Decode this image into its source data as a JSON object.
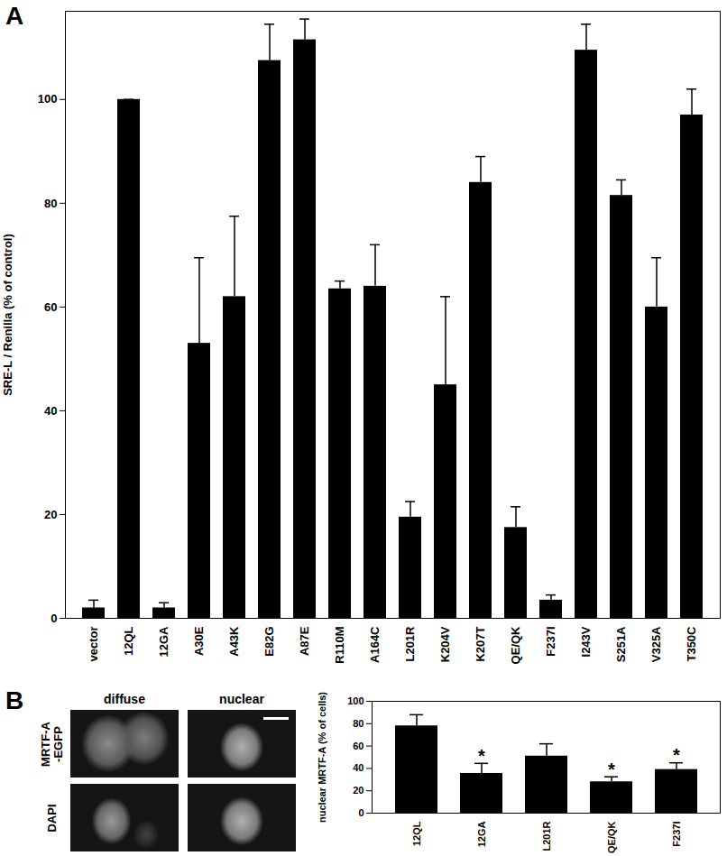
{
  "chart_data": [
    {
      "type": "bar",
      "title": "A",
      "y_label": "SRE-L / Renilla (% of control)",
      "categories": [
        "vector",
        "12QL",
        "12GA",
        "A30E",
        "A43K",
        "E82G",
        "A87E",
        "R110M",
        "A164C",
        "L201R",
        "K204V",
        "K207T",
        "QE/QK",
        "F237I",
        "I243V",
        "S251A",
        "V325A",
        "T350C"
      ],
      "values": [
        2,
        100,
        2,
        53,
        62,
        107.5,
        111.5,
        63.5,
        64,
        19.5,
        45,
        84,
        17.5,
        3.5,
        109.5,
        81.5,
        60,
        97
      ],
      "errors": [
        1.5,
        0,
        1,
        16.5,
        15.5,
        7,
        4,
        1.5,
        8,
        3,
        17,
        5,
        4,
        1,
        5,
        3,
        9.5,
        5
      ],
      "color": "#000000",
      "ylim": [
        0,
        117
      ],
      "yticks": [
        0,
        20,
        40,
        60,
        80,
        100
      ]
    },
    {
      "type": "bar",
      "title": "B",
      "y_label": "nuclear MRTF-A (% of cells)",
      "categories": [
        "12QL",
        "12GA",
        "L201R",
        "QE/QK",
        "F237I"
      ],
      "values": [
        78,
        35.5,
        51,
        28,
        39
      ],
      "errors": [
        10,
        9,
        11,
        4.5,
        6
      ],
      "annotations": [
        null,
        "*",
        null,
        "*",
        "*"
      ],
      "color": "#000000",
      "ylim": [
        0,
        100
      ],
      "yticks": [
        0,
        20,
        40,
        60,
        80,
        100
      ],
      "images": {
        "columns": [
          "diffuse",
          "nuclear"
        ],
        "rows": [
          [
            "MRTF-A",
            "-EGFP"
          ],
          [
            "DAPI"
          ]
        ]
      }
    }
  ]
}
